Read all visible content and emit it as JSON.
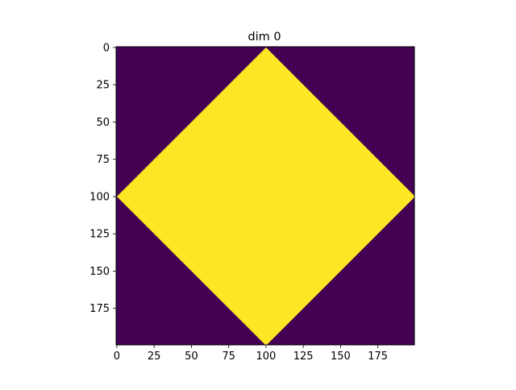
{
  "chart_data": {
    "type": "heatmap",
    "title": "dim 0",
    "xlabel": "",
    "ylabel": "",
    "shape": [
      200,
      200
    ],
    "xlim": [
      -0.5,
      199.5
    ],
    "ylim": [
      199.5,
      -0.5
    ],
    "y_inverted": true,
    "x_ticks": [
      0,
      25,
      50,
      75,
      100,
      125,
      150,
      175
    ],
    "y_ticks": [
      0,
      25,
      50,
      75,
      100,
      125,
      150,
      175
    ],
    "x_tick_labels": [
      "0",
      "25",
      "50",
      "75",
      "100",
      "125",
      "150",
      "175"
    ],
    "y_tick_labels": [
      "0",
      "25",
      "50",
      "75",
      "100",
      "125",
      "150",
      "175"
    ],
    "grid": false,
    "colormap": "viridis",
    "values": {
      "description_rule": "cell value is 1 where |row - 100| + |col - 100| <= 100, otherwise 0",
      "center": [
        100,
        100
      ],
      "radius": 100,
      "inside_value": 1,
      "outside_value": 0
    },
    "colors": {
      "inside": "#fde725",
      "outside": "#440154"
    }
  }
}
